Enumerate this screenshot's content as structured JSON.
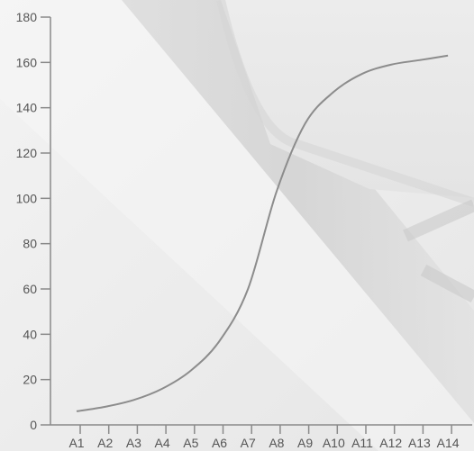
{
  "chart_data": {
    "type": "line",
    "categories": [
      "A1",
      "A2",
      "A3",
      "A4",
      "A5",
      "A6",
      "A7",
      "A8",
      "A9",
      "A10",
      "A11",
      "A12",
      "A13",
      "A14"
    ],
    "series": [
      {
        "values": [
          6,
          8,
          11,
          16,
          24,
          37,
          60,
          103,
          133,
          147,
          155,
          159,
          161,
          163
        ],
        "color": "#8c8c8c"
      }
    ],
    "y_ticks": [
      "0",
      "20",
      "40",
      "60",
      "80",
      "100",
      "120",
      "140",
      "160",
      "180"
    ],
    "ylim": [
      0,
      180
    ],
    "title": "",
    "xlabel": "",
    "ylabel": "",
    "grid": false,
    "legend": "none",
    "background": "decorative-photo-keyboard-key"
  }
}
